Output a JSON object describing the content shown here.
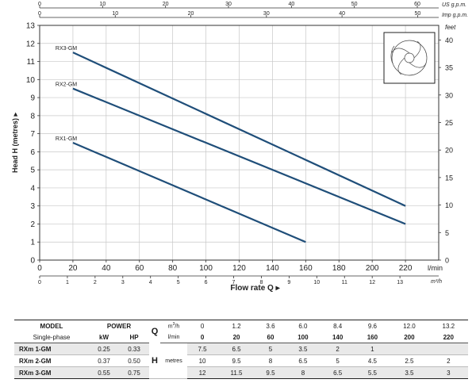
{
  "chart_data": {
    "type": "line",
    "x": [
      0,
      20,
      60,
      100,
      140,
      160,
      200,
      220
    ],
    "series": [
      {
        "name": "RX1-GM",
        "x": [
          20,
          160
        ],
        "y": [
          6.5,
          1
        ]
      },
      {
        "name": "RX2-GM",
        "x": [
          20,
          220
        ],
        "y": [
          9.5,
          2
        ]
      },
      {
        "name": "RX3-GM",
        "x": [
          20,
          220
        ],
        "y": [
          11.5,
          3
        ]
      }
    ],
    "xlim": [
      0,
      240
    ],
    "ylim": [
      0,
      13
    ],
    "xlabel": "Flow rate Q",
    "ylabel": "Head H (metres)",
    "x_unit": "l/min",
    "right_axis_unit": "feet",
    "grid": true,
    "bottom_ticks": [
      "0",
      "20",
      "40",
      "60",
      "80",
      "100",
      "120",
      "140",
      "160",
      "180",
      "200",
      "220"
    ],
    "m3h_axis": {
      "unit": "m³/h",
      "ticks": [
        "0",
        "1",
        "2",
        "3",
        "4",
        "5",
        "6",
        "7",
        "8",
        "9",
        "10",
        "11",
        "12",
        "13"
      ]
    },
    "us_gpm_axis": {
      "unit": "US g.p.m.",
      "ticks": [
        "0",
        "10",
        "20",
        "30",
        "40",
        "50",
        "60"
      ]
    },
    "imp_gpm_axis": {
      "unit": "Imp g.p.m.",
      "ticks": [
        "0",
        "10",
        "20",
        "30",
        "40",
        "50"
      ]
    },
    "left_ticks": [
      "0",
      "1",
      "2",
      "3",
      "4",
      "5",
      "6",
      "7",
      "8",
      "9",
      "10",
      "11",
      "12",
      "13"
    ],
    "feet_ticks": [
      "0",
      "5",
      "10",
      "15",
      "20",
      "25",
      "30",
      "35",
      "40"
    ]
  },
  "colors": {
    "curve": "#1f4e79",
    "grid": "#c8c8c8",
    "frame": "#333333",
    "row_shade": "#e9e9e9"
  },
  "icons": {
    "inset": "impeller-icon",
    "arrow": "triangle-right-icon"
  },
  "table": {
    "model": "MODEL",
    "single_phase": "Single-phase",
    "power": "POWER",
    "kw": "kW",
    "hp": "HP",
    "q_letter": "Q",
    "h_letter": "H",
    "m3h": "m",
    "m3h_sup": "3",
    "m3h_tail": "/h",
    "lmin": "l/min",
    "metres": "metres",
    "flow_m3h": [
      "0",
      "1.2",
      "3.6",
      "6.0",
      "8.4",
      "9.6",
      "12.0",
      "13.2"
    ],
    "flow_lmin": [
      "0",
      "20",
      "60",
      "100",
      "140",
      "160",
      "200",
      "220"
    ],
    "rows": [
      {
        "model": "RXm 1-GM",
        "kw": "0.25",
        "hp": "0.33",
        "h": [
          "7.5",
          "6.5",
          "5",
          "3.5",
          "2",
          "1",
          "",
          ""
        ]
      },
      {
        "model": "RXm 2-GM",
        "kw": "0.37",
        "hp": "0.50",
        "h": [
          "10",
          "9.5",
          "8",
          "6.5",
          "5",
          "4.5",
          "2.5",
          "2"
        ]
      },
      {
        "model": "RXm 3-GM",
        "kw": "0.55",
        "hp": "0.75",
        "h": [
          "12",
          "11.5",
          "9.5",
          "8",
          "6.5",
          "5.5",
          "3.5",
          "3"
        ]
      }
    ]
  }
}
